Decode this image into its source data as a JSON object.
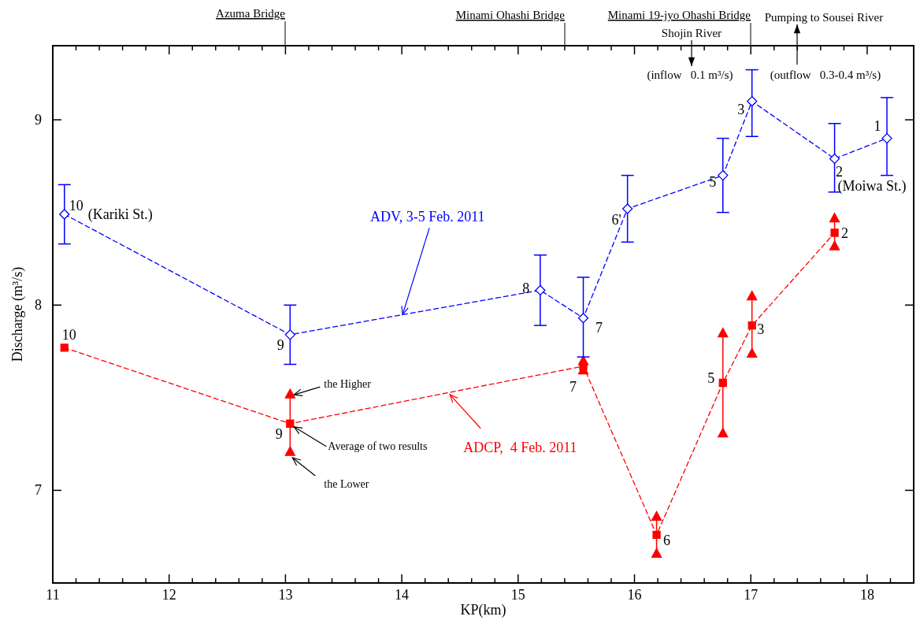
{
  "chart_data": {
    "type": "line",
    "xlabel": "KP(km)",
    "ylabel": "Discharge (m³/s)",
    "xlim": [
      11,
      18.4
    ],
    "ylim": [
      6.5,
      9.4
    ],
    "xticks": [
      11,
      {
        "value": 11.2,
        "label": null
      },
      {
        "value": 11.4,
        "label": null
      },
      {
        "value": 11.6,
        "label": null
      },
      {
        "value": 11.8,
        "label": null
      },
      12,
      {
        "value": 12.2,
        "label": null
      },
      {
        "value": 12.4,
        "label": null
      },
      {
        "value": 12.6,
        "label": null
      },
      {
        "value": 12.8,
        "label": null
      },
      13,
      {
        "value": 13.2,
        "label": null
      },
      {
        "value": 13.4,
        "label": null
      },
      {
        "value": 13.6,
        "label": null
      },
      {
        "value": 13.8,
        "label": null
      },
      14,
      {
        "value": 14.2,
        "label": null
      },
      {
        "value": 14.4,
        "label": null
      },
      {
        "value": 14.6,
        "label": null
      },
      {
        "value": 14.8,
        "label": null
      },
      15,
      {
        "value": 15.2,
        "label": null
      },
      {
        "value": 15.4,
        "label": null
      },
      {
        "value": 15.6,
        "label": null
      },
      {
        "value": 15.8,
        "label": null
      },
      16,
      {
        "value": 16.2,
        "label": null
      },
      {
        "value": 16.4,
        "label": null
      },
      {
        "value": 16.6,
        "label": null
      },
      {
        "value": 16.8,
        "label": null
      },
      17,
      {
        "value": 17.2,
        "label": null
      },
      {
        "value": 17.4,
        "label": null
      },
      {
        "value": 17.6,
        "label": null
      },
      {
        "value": 17.8,
        "label": null
      },
      18,
      {
        "value": 18.2,
        "label": null
      }
    ],
    "yticks": [
      7,
      8,
      9
    ],
    "grid": false,
    "line_style": "dashed",
    "series": [
      {
        "color": "#0000ff",
        "marker": "diamond",
        "x": [
          11.1,
          13.04,
          15.19,
          15.56,
          15.94,
          16.76,
          17.01,
          17.72,
          18.17
        ],
        "values": [
          8.49,
          7.84,
          8.08,
          7.93,
          8.52,
          8.7,
          9.1,
          8.79,
          8.9
        ],
        "errors": [
          [
            8.33,
            8.65
          ],
          [
            7.68,
            8.0
          ],
          [
            7.89,
            8.27
          ],
          [
            7.72,
            8.15
          ],
          [
            8.34,
            8.7
          ],
          [
            8.5,
            8.9
          ],
          [
            8.91,
            9.27
          ],
          [
            8.61,
            8.98
          ],
          [
            8.7,
            9.12
          ]
        ]
      },
      {
        "color": "#ff0000",
        "marker": "square",
        "x": [
          11.1,
          13.04,
          15.56,
          16.19,
          16.76,
          17.01,
          17.72
        ],
        "values": [
          7.77,
          7.36,
          7.67,
          6.76,
          7.58,
          7.89,
          8.39
        ],
        "errors": [
          null,
          [
            7.21,
            7.52
          ],
          null,
          [
            6.66,
            6.86
          ],
          [
            7.31,
            7.85
          ],
          [
            7.74,
            8.05
          ],
          [
            8.32,
            8.47
          ]
        ]
      },
      {
        "type": "scatter",
        "color": "#ff0000",
        "marker": "triangle",
        "x": [
          13.04,
          15.56,
          16.19,
          16.76,
          17.01,
          17.72
        ],
        "values": [
          7.52,
          7.7,
          6.86,
          7.85,
          8.05,
          8.47
        ]
      },
      {
        "type": "scatter",
        "color": "#ff0000",
        "marker": "triangle",
        "x": [
          13.04,
          15.56,
          16.19,
          16.76,
          17.01,
          17.72
        ],
        "values": [
          7.21,
          7.65,
          6.66,
          7.31,
          7.74,
          8.32
        ]
      }
    ],
    "annotations": [
      "Azuma Bridge",
      "Minami Ohashi Bridge",
      "Minami 19-jyo Ohashi Bridge",
      "Shojin River",
      "Pumping to Sousei River",
      "(inflow   0.1 m³/s)",
      "(outflow   0.3-0.4 m³/s)",
      {
        "text": "(Kariki St.)",
        "x": 11.1,
        "y": 8.49
      },
      {
        "text": "(Moiwa St.)",
        "x": 17.72,
        "y": 8.79
      },
      {
        "text": "ADV, 3-5 Feb. 2011",
        "x": 14.0,
        "y": 7.94
      },
      {
        "text": "ADCP,  4 Feb. 2011",
        "x": 14.4,
        "y": 7.53
      },
      {
        "text": "the Higher",
        "x": 13.04,
        "y": 7.52
      },
      {
        "text": "Average of two results",
        "x": 13.04,
        "y": 7.36
      },
      {
        "text": "the Lower",
        "x": 13.04,
        "y": 7.21
      },
      {
        "text": "10",
        "x": 11.1,
        "y": 8.49
      },
      {
        "text": "9",
        "x": 13.04,
        "y": 7.84
      },
      {
        "text": "8",
        "x": 15.19,
        "y": 8.08
      },
      {
        "text": "7",
        "x": 15.56,
        "y": 7.93
      },
      {
        "text": "6'",
        "x": 15.94,
        "y": 8.52
      },
      {
        "text": "5",
        "x": 16.76,
        "y": 8.7
      },
      {
        "text": "3",
        "x": 17.01,
        "y": 9.1
      },
      {
        "text": "2",
        "x": 17.72,
        "y": 8.79
      },
      {
        "text": "1",
        "x": 18.17,
        "y": 8.9
      },
      {
        "text": "10",
        "x": 11.1,
        "y": 7.77
      },
      {
        "text": "9",
        "x": 13.04,
        "y": 7.36
      },
      {
        "text": "7",
        "x": 15.56,
        "y": 7.67
      },
      {
        "text": "6",
        "x": 16.19,
        "y": 6.76
      },
      {
        "text": "5",
        "x": 16.76,
        "y": 7.58
      },
      {
        "text": "3",
        "x": 17.01,
        "y": 7.89
      },
      {
        "text": "2",
        "x": 17.72,
        "y": 8.39
      }
    ]
  }
}
